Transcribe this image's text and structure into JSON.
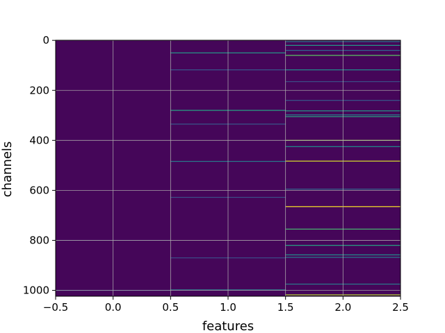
{
  "chart_data": {
    "type": "heatmap",
    "title": "",
    "xlabel": "features",
    "ylabel": "channels",
    "x_categories": [
      0,
      1,
      2
    ],
    "xlim": [
      -0.5,
      2.5
    ],
    "ylim": [
      1023.5,
      -0.5
    ],
    "x_ticks": [
      -0.5,
      0.0,
      0.5,
      1.0,
      1.5,
      2.0,
      2.5
    ],
    "x_tick_labels": [
      "−0.5",
      "0.0",
      "0.5",
      "1.0",
      "1.5",
      "2.0",
      "2.5"
    ],
    "y_ticks": [
      0,
      200,
      400,
      600,
      800,
      1000
    ],
    "y_tick_labels": [
      "0",
      "200",
      "400",
      "600",
      "800",
      "1000"
    ],
    "n_channels": 1024,
    "grid": true,
    "colormap": "viridis",
    "background_value": 0.02,
    "notable_cells": [
      {
        "feature": 0,
        "channel": 1000,
        "value": 0.25
      },
      {
        "feature": 0,
        "channel": 800,
        "value": 0.12
      },
      {
        "feature": 1,
        "channel": 50,
        "value": 0.55
      },
      {
        "feature": 1,
        "channel": 118,
        "value": 0.35
      },
      {
        "feature": 1,
        "channel": 280,
        "value": 0.6
      },
      {
        "feature": 1,
        "channel": 335,
        "value": 0.35
      },
      {
        "feature": 1,
        "channel": 484,
        "value": 0.45
      },
      {
        "feature": 1,
        "channel": 628,
        "value": 0.3
      },
      {
        "feature": 1,
        "channel": 870,
        "value": 0.3
      },
      {
        "feature": 1,
        "channel": 998,
        "value": 0.45
      },
      {
        "feature": 2,
        "channel": 5,
        "value": 0.45
      },
      {
        "feature": 2,
        "channel": 20,
        "value": 0.55
      },
      {
        "feature": 2,
        "channel": 40,
        "value": 0.4
      },
      {
        "feature": 2,
        "channel": 60,
        "value": 0.75
      },
      {
        "feature": 2,
        "channel": 118,
        "value": 0.5
      },
      {
        "feature": 2,
        "channel": 165,
        "value": 0.3
      },
      {
        "feature": 2,
        "channel": 240,
        "value": 0.35
      },
      {
        "feature": 2,
        "channel": 282,
        "value": 0.55
      },
      {
        "feature": 2,
        "channel": 298,
        "value": 0.45
      },
      {
        "feature": 2,
        "channel": 305,
        "value": 0.6
      },
      {
        "feature": 2,
        "channel": 400,
        "value": 0.85
      },
      {
        "feature": 2,
        "channel": 425,
        "value": 0.5
      },
      {
        "feature": 2,
        "channel": 483,
        "value": 0.95
      },
      {
        "feature": 2,
        "channel": 595,
        "value": 0.4
      },
      {
        "feature": 2,
        "channel": 665,
        "value": 1.0
      },
      {
        "feature": 2,
        "channel": 755,
        "value": 0.7
      },
      {
        "feature": 2,
        "channel": 820,
        "value": 0.6
      },
      {
        "feature": 2,
        "channel": 858,
        "value": 0.5
      },
      {
        "feature": 2,
        "channel": 868,
        "value": 0.45
      },
      {
        "feature": 2,
        "channel": 975,
        "value": 0.45
      },
      {
        "feature": 2,
        "channel": 1018,
        "value": 0.9
      }
    ]
  }
}
